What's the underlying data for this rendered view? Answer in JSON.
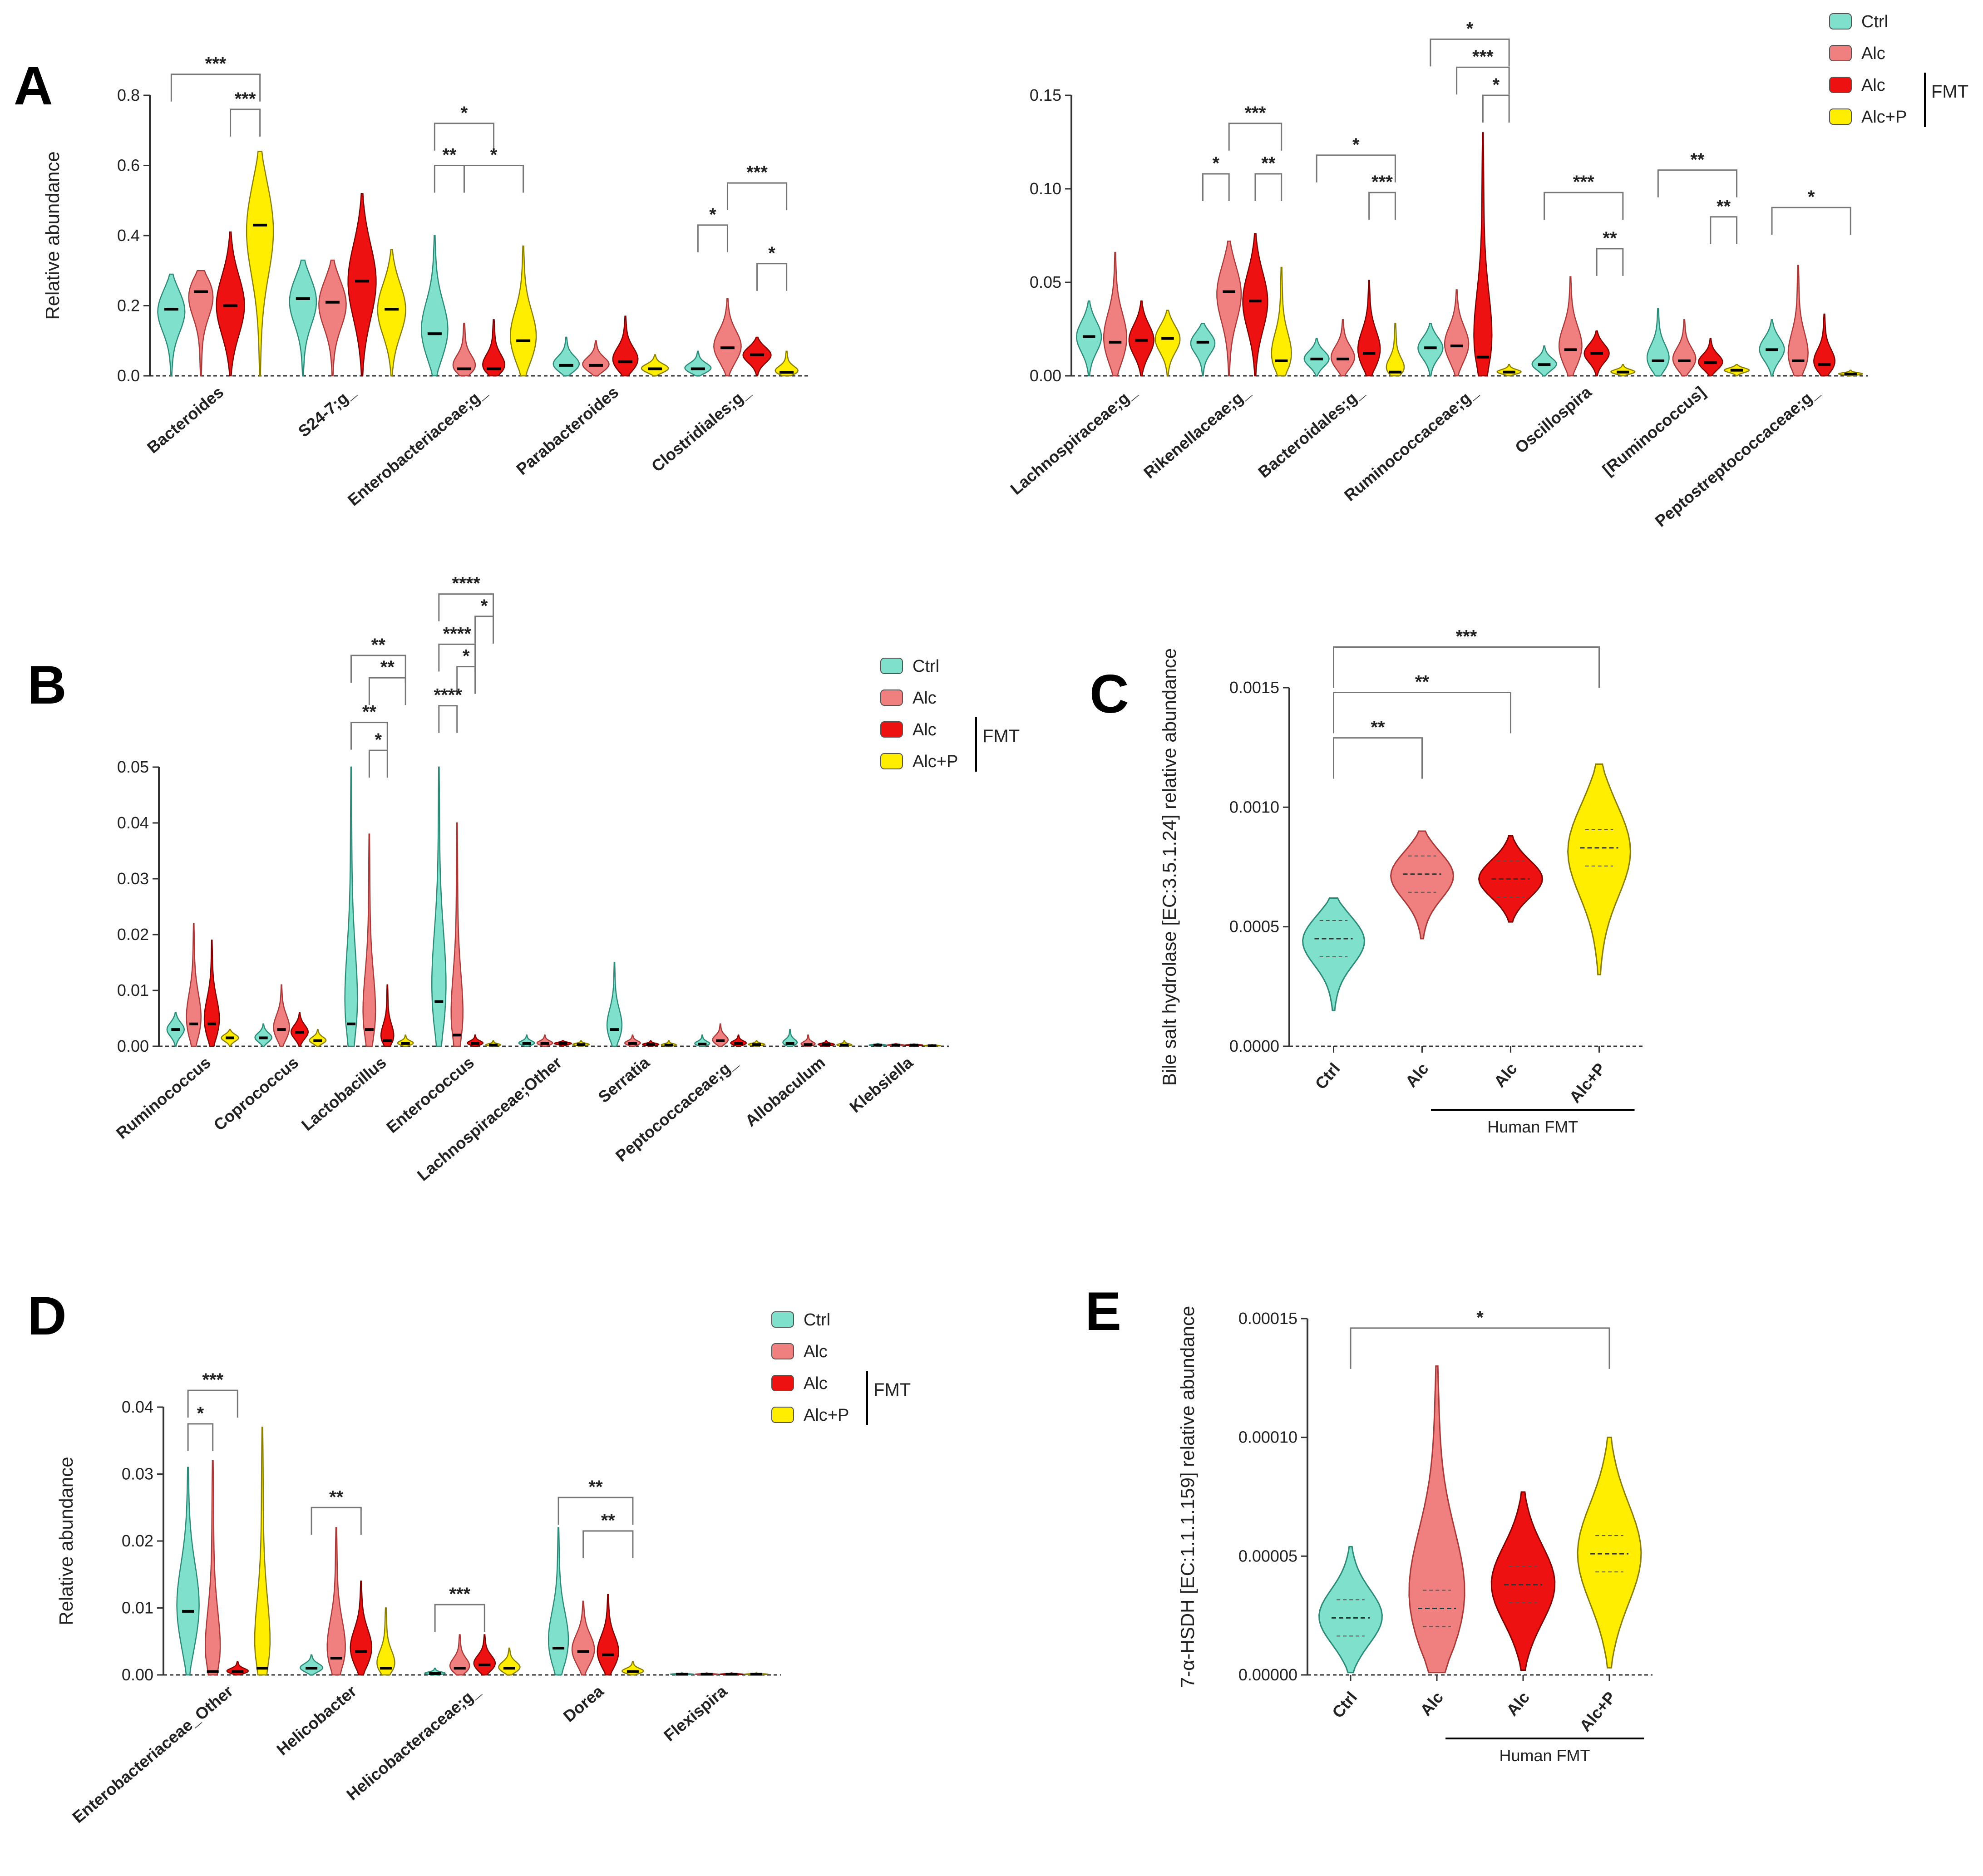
{
  "legend": {
    "groups": [
      {
        "name": "Ctrl",
        "color": "#7fe0cc"
      },
      {
        "name": "Alc",
        "color": "#f08080"
      },
      {
        "name": "Alc",
        "color": "#ee1111"
      },
      {
        "name": "Alc+P",
        "color": "#ffee00"
      }
    ],
    "bracket_label": "FMT"
  },
  "chart_data": [
    {
      "panel": "A",
      "type": "violin",
      "ylabel": "Relative abundance",
      "ylim": [
        0,
        0.8
      ],
      "yticks": [
        "0.0",
        "0.2",
        "0.4",
        "0.6",
        "0.8"
      ],
      "categories": [
        "Bacteroides",
        "S24-7;g_",
        "Enterobacteriaceae;g_",
        "Parabacteroides",
        "Clostridiales;g_"
      ],
      "series": [
        {
          "name": "Ctrl",
          "medians": [
            0.19,
            0.22,
            0.12,
            0.03,
            0.02
          ],
          "maxes": [
            0.29,
            0.33,
            0.4,
            0.11,
            0.07
          ]
        },
        {
          "name": "Alc",
          "medians": [
            0.24,
            0.21,
            0.02,
            0.03,
            0.08
          ],
          "maxes": [
            0.3,
            0.33,
            0.15,
            0.1,
            0.22
          ]
        },
        {
          "name": "Alc",
          "medians": [
            0.2,
            0.27,
            0.02,
            0.04,
            0.06
          ],
          "maxes": [
            0.41,
            0.52,
            0.16,
            0.17,
            0.11
          ]
        },
        {
          "name": "Alc+P",
          "medians": [
            0.43,
            0.19,
            0.1,
            0.02,
            0.01
          ],
          "maxes": [
            0.64,
            0.36,
            0.37,
            0.06,
            0.07
          ]
        }
      ],
      "significance": [
        {
          "label": "***",
          "category": 0,
          "from": 0,
          "to": 3,
          "y": 0.86
        },
        {
          "label": "***",
          "category": 0,
          "from": 2,
          "to": 3,
          "y": 0.76
        },
        {
          "label": "*",
          "category": 2,
          "from": 0,
          "to": 2,
          "y": 0.72
        },
        {
          "label": "**",
          "category": 2,
          "from": 0,
          "to": 1,
          "y": 0.6
        },
        {
          "label": "*",
          "category": 2,
          "from": 1,
          "to": 3,
          "y": 0.6
        },
        {
          "label": "***",
          "category": 4,
          "from": 1,
          "to": 3,
          "y": 0.55
        },
        {
          "label": "*",
          "category": 4,
          "from": 0,
          "to": 1,
          "y": 0.43
        },
        {
          "label": "*",
          "category": 4,
          "from": 2,
          "to": 3,
          "y": 0.32
        }
      ]
    },
    {
      "panel": "A2",
      "type": "violin",
      "ylabel": "",
      "ylim": [
        0,
        0.15
      ],
      "yticks": [
        "0.00",
        "0.05",
        "0.10",
        "0.15"
      ],
      "categories": [
        "Lachnospiraceae;g_",
        "Rikenellaceae;g_",
        "Bacteroidales;g_",
        "Ruminococcaceae;g_",
        "Oscillospira",
        "[Ruminococcus]",
        "Peptostreptococcaceae;g_"
      ],
      "series": [
        {
          "name": "Ctrl",
          "medians": [
            0.021,
            0.018,
            0.009,
            0.015,
            0.006,
            0.008,
            0.014
          ],
          "maxes": [
            0.04,
            0.028,
            0.02,
            0.028,
            0.016,
            0.036,
            0.03
          ]
        },
        {
          "name": "Alc",
          "medians": [
            0.018,
            0.045,
            0.009,
            0.016,
            0.014,
            0.008,
            0.008
          ],
          "maxes": [
            0.066,
            0.072,
            0.03,
            0.046,
            0.053,
            0.03,
            0.059
          ]
        },
        {
          "name": "Alc",
          "medians": [
            0.019,
            0.04,
            0.012,
            0.01,
            0.012,
            0.007,
            0.006
          ],
          "maxes": [
            0.04,
            0.076,
            0.051,
            0.13,
            0.024,
            0.02,
            0.033
          ]
        },
        {
          "name": "Alc+P",
          "medians": [
            0.02,
            0.008,
            0.002,
            0.002,
            0.002,
            0.003,
            0.001
          ],
          "maxes": [
            0.035,
            0.058,
            0.028,
            0.006,
            0.006,
            0.006,
            0.003
          ]
        }
      ],
      "significance": [
        {
          "label": "***",
          "category": 1,
          "from": 1,
          "to": 3,
          "y": 0.135
        },
        {
          "label": "*",
          "category": 1,
          "from": 0,
          "to": 1,
          "y": 0.108
        },
        {
          "label": "**",
          "category": 1,
          "from": 2,
          "to": 3,
          "y": 0.108
        },
        {
          "label": "*",
          "category": 2,
          "from": 0,
          "to": 3,
          "y": 0.118
        },
        {
          "label": "***",
          "category": 2,
          "from": 2,
          "to": 3,
          "y": 0.098
        },
        {
          "label": "*",
          "category": 3,
          "from": 0,
          "to": 3,
          "y": 0.18
        },
        {
          "label": "***",
          "category": 3,
          "from": 1,
          "to": 3,
          "y": 0.165
        },
        {
          "label": "*",
          "category": 3,
          "from": 2,
          "to": 3,
          "y": 0.15
        },
        {
          "label": "***",
          "category": 4,
          "from": 0,
          "to": 3,
          "y": 0.098
        },
        {
          "label": "**",
          "category": 4,
          "from": 2,
          "to": 3,
          "y": 0.068
        },
        {
          "label": "**",
          "category": 5,
          "from": 0,
          "to": 3,
          "y": 0.11
        },
        {
          "label": "**",
          "category": 5,
          "from": 2,
          "to": 3,
          "y": 0.085
        },
        {
          "label": "*",
          "category": 6,
          "from": 0,
          "to": 3,
          "y": 0.09
        }
      ]
    },
    {
      "panel": "B",
      "type": "violin",
      "ylabel": "",
      "ylim": [
        0,
        0.05
      ],
      "yticks": [
        "0.00",
        "0.01",
        "0.02",
        "0.03",
        "0.04",
        "0.05"
      ],
      "categories": [
        "Ruminococcus",
        "Coprococcus",
        "Lactobacillus",
        "Enterococcus",
        "Lachnospiraceae;Other",
        "Serratia",
        "Peptococcaceae;g_",
        "Allobaculum",
        "Klebsiella"
      ],
      "series": [
        {
          "name": "Ctrl",
          "medians": [
            0.003,
            0.0015,
            0.004,
            0.008,
            0.0005,
            0.003,
            0.0004,
            0.0005,
            0.0002
          ],
          "maxes": [
            0.006,
            0.004,
            0.05,
            0.05,
            0.002,
            0.015,
            0.002,
            0.003,
            0.0005
          ]
        },
        {
          "name": "Alc",
          "medians": [
            0.004,
            0.003,
            0.003,
            0.002,
            0.0005,
            0.0005,
            0.001,
            0.0003,
            0.0002
          ],
          "maxes": [
            0.022,
            0.011,
            0.038,
            0.04,
            0.002,
            0.002,
            0.004,
            0.002,
            0.0005
          ]
        },
        {
          "name": "Alc",
          "medians": [
            0.004,
            0.0025,
            0.001,
            0.0005,
            0.0005,
            0.0003,
            0.0005,
            0.0003,
            0.0002
          ],
          "maxes": [
            0.019,
            0.006,
            0.011,
            0.002,
            0.001,
            0.001,
            0.002,
            0.001,
            0.0004
          ]
        },
        {
          "name": "Alc+P",
          "medians": [
            0.0015,
            0.001,
            0.0005,
            0.0002,
            0.0003,
            0.0002,
            0.0003,
            0.0002,
            0.0001
          ],
          "maxes": [
            0.003,
            0.003,
            0.002,
            0.001,
            0.001,
            0.001,
            0.001,
            0.001,
            0.0003
          ]
        }
      ],
      "significance": [
        {
          "label": "**",
          "category": 2,
          "from": 0,
          "to": 3,
          "y": 0.07
        },
        {
          "label": "**",
          "category": 2,
          "from": 1,
          "to": 3,
          "y": 0.066
        },
        {
          "label": "**",
          "category": 2,
          "from": 0,
          "to": 2,
          "y": 0.058
        },
        {
          "label": "*",
          "category": 2,
          "from": 1,
          "to": 2,
          "y": 0.053
        },
        {
          "label": "****",
          "category": 3,
          "from": 0,
          "to": 3,
          "y": 0.081
        },
        {
          "label": "*",
          "category": 3,
          "from": 2,
          "to": 3,
          "y": 0.077
        },
        {
          "label": "****",
          "category": 3,
          "from": 0,
          "to": 2,
          "y": 0.072
        },
        {
          "label": "*",
          "category": 3,
          "from": 1,
          "to": 2,
          "y": 0.068
        },
        {
          "label": "****",
          "category": 3,
          "from": 0,
          "to": 1,
          "y": 0.061
        }
      ]
    },
    {
      "panel": "C",
      "type": "violin",
      "ylabel": "Bile salt hydrolase [EC:3.5.1.24] relative abundance",
      "ylim": [
        0,
        0.0015
      ],
      "yticks": [
        "0.0000",
        "0.0005",
        "0.0010",
        "0.0015"
      ],
      "categories": [
        "Ctrl",
        "Alc",
        "Alc",
        "Alc+P"
      ],
      "values_median": [
        0.00045,
        0.00072,
        0.0007,
        0.00083
      ],
      "values_min": [
        0.00015,
        0.00045,
        0.00052,
        0.0003
      ],
      "values_max": [
        0.00062,
        0.0009,
        0.00088,
        0.00118
      ],
      "group_label": "Human FMT",
      "significance": [
        {
          "label": "***",
          "from": 0,
          "to": 3,
          "y": 0.00167
        },
        {
          "label": "**",
          "from": 0,
          "to": 2,
          "y": 0.00148
        },
        {
          "label": "**",
          "from": 0,
          "to": 1,
          "y": 0.00129
        }
      ]
    },
    {
      "panel": "D",
      "type": "violin",
      "ylabel": "Relative abundance",
      "ylim": [
        0,
        0.04
      ],
      "yticks": [
        "0.00",
        "0.01",
        "0.02",
        "0.03",
        "0.04"
      ],
      "categories": [
        "Enterobacteriaceae_Other",
        "Helicobacter",
        "Helicobacteraceae;g_",
        "Dorea",
        "Flexispira"
      ],
      "series": [
        {
          "name": "Ctrl",
          "medians": [
            0.0095,
            0.001,
            0.0002,
            0.004,
            0.0001
          ],
          "maxes": [
            0.031,
            0.003,
            0.001,
            0.022,
            0.0003
          ]
        },
        {
          "name": "Alc",
          "medians": [
            0.0005,
            0.0025,
            0.001,
            0.0035,
            0.0001
          ],
          "maxes": [
            0.032,
            0.022,
            0.006,
            0.011,
            0.0003
          ]
        },
        {
          "name": "Alc",
          "medians": [
            0.0005,
            0.0035,
            0.0015,
            0.003,
            0.0001
          ],
          "maxes": [
            0.002,
            0.014,
            0.006,
            0.012,
            0.0003
          ]
        },
        {
          "name": "Alc+P",
          "medians": [
            0.001,
            0.001,
            0.001,
            0.0005,
            0.0001
          ],
          "maxes": [
            0.037,
            0.01,
            0.004,
            0.002,
            0.0003
          ]
        }
      ],
      "significance": [
        {
          "label": "***",
          "category": 0,
          "from": 0,
          "to": 2,
          "y": 0.0425
        },
        {
          "label": "*",
          "category": 0,
          "from": 0,
          "to": 1,
          "y": 0.0375
        },
        {
          "label": "**",
          "category": 1,
          "from": 0,
          "to": 2,
          "y": 0.025
        },
        {
          "label": "***",
          "category": 2,
          "from": 0,
          "to": 2,
          "y": 0.0105
        },
        {
          "label": "**",
          "category": 3,
          "from": 0,
          "to": 3,
          "y": 0.0265
        },
        {
          "label": "**",
          "category": 3,
          "from": 1,
          "to": 3,
          "y": 0.0215
        }
      ]
    },
    {
      "panel": "E",
      "type": "violin",
      "ylabel": "7-α-HSDH [EC:1.1.1.159] relative abundance",
      "ylim": [
        0,
        0.00015
      ],
      "yticks": [
        "0.00000",
        "0.00005",
        "0.00010",
        "0.00015"
      ],
      "categories": [
        "Ctrl",
        "Alc",
        "Alc",
        "Alc+P"
      ],
      "values_median": [
        2.4e-05,
        2.8e-05,
        3.8e-05,
        5.1e-05
      ],
      "values_min": [
        1e-06,
        1e-06,
        2e-06,
        3e-06
      ],
      "values_max": [
        5.4e-05,
        0.00013,
        7.7e-05,
        0.0001
      ],
      "group_label": "Human FMT",
      "significance": [
        {
          "label": "*",
          "from": 0,
          "to": 3,
          "y": 0.000146
        }
      ]
    }
  ],
  "panels": {
    "A": "A",
    "B": "B",
    "C": "C",
    "D": "D",
    "E": "E"
  }
}
